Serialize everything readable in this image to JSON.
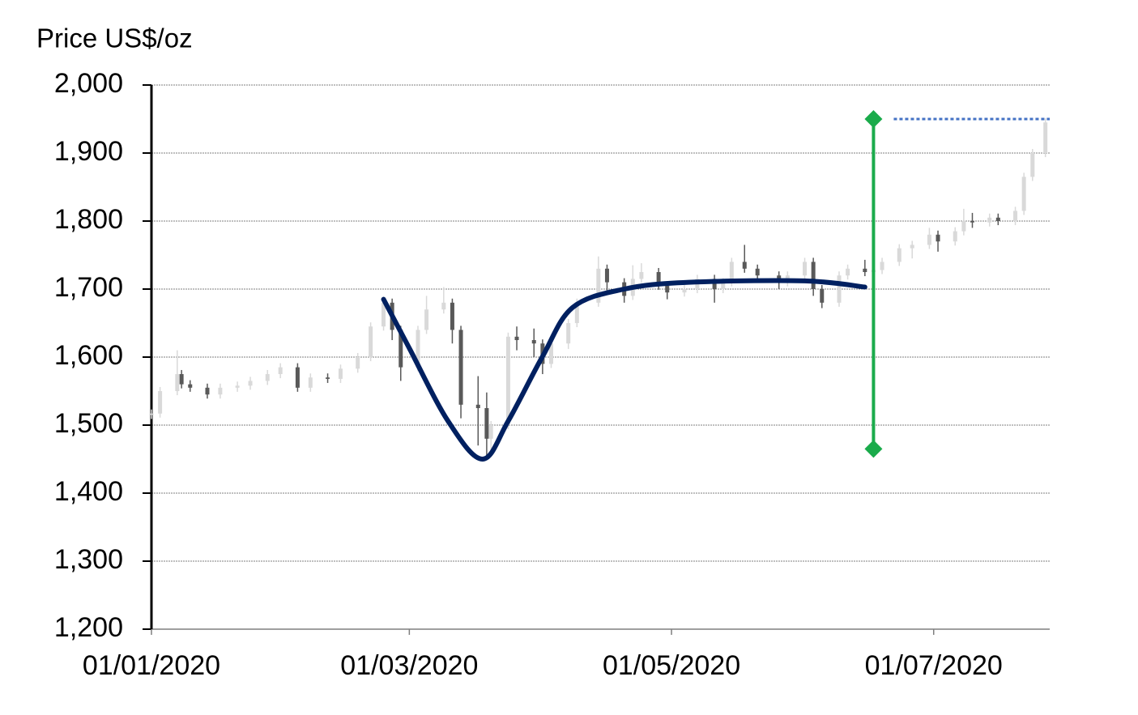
{
  "chart_data": {
    "type": "candlestick",
    "y_label": "Price US$/oz",
    "ylim": [
      1200,
      2000
    ],
    "yticks": [
      {
        "value": 1200,
        "label": "1,200"
      },
      {
        "value": 1300,
        "label": "1,300"
      },
      {
        "value": 1400,
        "label": "1,400"
      },
      {
        "value": 1500,
        "label": "1,500"
      },
      {
        "value": 1600,
        "label": "1,600"
      },
      {
        "value": 1700,
        "label": "1,700"
      },
      {
        "value": 1800,
        "label": "1,800"
      },
      {
        "value": 1900,
        "label": "1,900"
      },
      {
        "value": 2000,
        "label": "2,000"
      }
    ],
    "xlim": [
      "01/01/2020",
      "28/07/2020"
    ],
    "xticks": [
      "01/01/2020",
      "01/03/2020",
      "01/05/2020",
      "01/07/2020"
    ],
    "grid": true,
    "up_color": "#d9d9d9",
    "down_color": "#595959",
    "x": [
      "01/01/2020",
      "03/01/2020",
      "07/01/2020",
      "08/01/2020",
      "10/01/2020",
      "14/01/2020",
      "17/01/2020",
      "21/01/2020",
      "24/01/2020",
      "28/01/2020",
      "31/01/2020",
      "04/02/2020",
      "07/02/2020",
      "11/02/2020",
      "14/02/2020",
      "18/02/2020",
      "21/02/2020",
      "24/02/2020",
      "26/02/2020",
      "28/02/2020",
      "03/03/2020",
      "05/03/2020",
      "09/03/2020",
      "11/03/2020",
      "13/03/2020",
      "17/03/2020",
      "19/03/2020",
      "20/03/2020",
      "24/03/2020",
      "26/03/2020",
      "30/03/2020",
      "01/04/2020",
      "03/04/2020",
      "07/04/2020",
      "09/04/2020",
      "14/04/2020",
      "16/04/2020",
      "20/04/2020",
      "22/04/2020",
      "24/04/2020",
      "28/04/2020",
      "30/04/2020",
      "04/05/2020",
      "07/05/2020",
      "11/05/2020",
      "13/05/2020",
      "15/05/2020",
      "18/05/2020",
      "21/05/2020",
      "26/05/2020",
      "28/05/2020",
      "01/06/2020",
      "03/06/2020",
      "05/06/2020",
      "09/06/2020",
      "11/06/2020",
      "15/06/2020",
      "17/06/2020",
      "19/06/2020",
      "23/06/2020",
      "26/06/2020",
      "30/06/2020",
      "02/07/2020",
      "06/07/2020",
      "08/07/2020",
      "10/07/2020",
      "14/07/2020",
      "16/07/2020",
      "20/07/2020",
      "22/07/2020",
      "24/07/2020",
      "27/07/2020"
    ],
    "open": [
      1515,
      1517,
      1550,
      1575,
      1560,
      1555,
      1545,
      1555,
      1558,
      1565,
      1575,
      1585,
      1555,
      1570,
      1568,
      1583,
      1600,
      1645,
      1680,
      1640,
      1585,
      1640,
      1670,
      1680,
      1640,
      1530,
      1525,
      1480,
      1500,
      1630,
      1625,
      1620,
      1590,
      1620,
      1650,
      1680,
      1730,
      1710,
      1690,
      1715,
      1725,
      1705,
      1695,
      1700,
      1715,
      1700,
      1710,
      1740,
      1730,
      1720,
      1710,
      1720,
      1740,
      1700,
      1680,
      1720,
      1730,
      1725,
      1728,
      1740,
      1760,
      1765,
      1780,
      1770,
      1785,
      1800,
      1798,
      1805,
      1800,
      1815,
      1865,
      1900
    ],
    "high": [
      1523,
      1556,
      1610,
      1581,
      1566,
      1561,
      1561,
      1564,
      1571,
      1581,
      1591,
      1591,
      1576,
      1576,
      1589,
      1606,
      1651,
      1689,
      1686,
      1646,
      1646,
      1690,
      1703,
      1686,
      1646,
      1572,
      1548,
      1506,
      1636,
      1645,
      1642,
      1626,
      1626,
      1656,
      1686,
      1748,
      1736,
      1716,
      1735,
      1738,
      1731,
      1711,
      1706,
      1721,
      1721,
      1716,
      1746,
      1765,
      1736,
      1726,
      1726,
      1746,
      1746,
      1706,
      1726,
      1736,
      1743,
      1734,
      1746,
      1766,
      1771,
      1790,
      1786,
      1791,
      1818,
      1812,
      1811,
      1811,
      1821,
      1871,
      1906,
      1951
    ],
    "low": [
      1509,
      1511,
      1544,
      1554,
      1549,
      1539,
      1539,
      1549,
      1552,
      1559,
      1569,
      1549,
      1549,
      1562,
      1562,
      1577,
      1594,
      1639,
      1625,
      1565,
      1579,
      1634,
      1664,
      1620,
      1510,
      1470,
      1455,
      1462,
      1494,
      1610,
      1600,
      1575,
      1584,
      1612,
      1644,
      1674,
      1695,
      1680,
      1684,
      1709,
      1699,
      1685,
      1689,
      1694,
      1680,
      1694,
      1704,
      1724,
      1714,
      1700,
      1704,
      1714,
      1690,
      1672,
      1674,
      1714,
      1719,
      1719,
      1722,
      1734,
      1745,
      1759,
      1755,
      1764,
      1779,
      1790,
      1792,
      1794,
      1794,
      1809,
      1859,
      1894
    ],
    "close": [
      1517,
      1550,
      1575,
      1560,
      1555,
      1545,
      1555,
      1558,
      1565,
      1575,
      1585,
      1555,
      1570,
      1568,
      1583,
      1600,
      1645,
      1680,
      1640,
      1585,
      1640,
      1670,
      1680,
      1640,
      1530,
      1525,
      1480,
      1500,
      1630,
      1625,
      1620,
      1590,
      1620,
      1650,
      1680,
      1730,
      1710,
      1690,
      1715,
      1725,
      1705,
      1695,
      1700,
      1715,
      1700,
      1710,
      1740,
      1730,
      1720,
      1710,
      1720,
      1740,
      1700,
      1680,
      1720,
      1730,
      1725,
      1728,
      1740,
      1760,
      1765,
      1780,
      1770,
      1785,
      1800,
      1798,
      1805,
      1800,
      1815,
      1865,
      1900,
      1945
    ],
    "trend": {
      "color": "#002060",
      "x": [
        "24/02/2020",
        "01/03/2020",
        "10/03/2020",
        "18/03/2020",
        "24/03/2020",
        "01/04/2020",
        "08/04/2020",
        "20/04/2020",
        "05/05/2020",
        "01/06/2020",
        "15/06/2020"
      ],
      "values": [
        1685,
        1613,
        1506,
        1450,
        1506,
        1601,
        1673,
        1700,
        1710,
        1712,
        1703
      ]
    },
    "range": {
      "color": "#1aab4b",
      "x": "17/06/2020",
      "values": [
        1465,
        1950
      ]
    },
    "level": {
      "color": "#4472c4",
      "x": [
        "17/06/2020",
        "28/07/2020"
      ],
      "value": 1950
    }
  }
}
